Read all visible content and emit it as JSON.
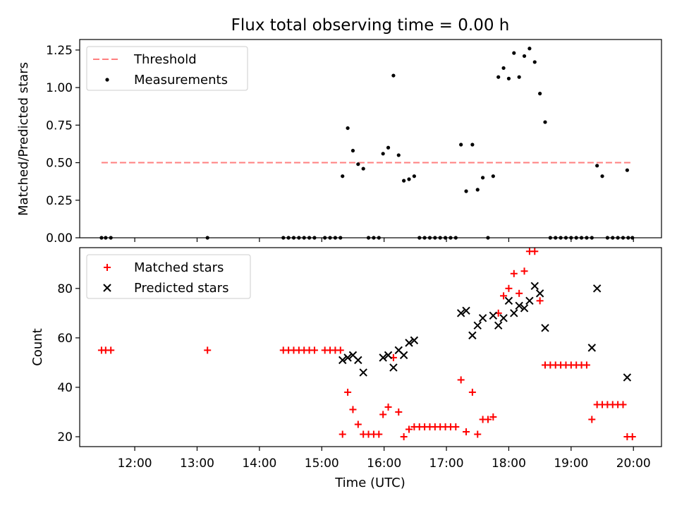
{
  "chart_data": [
    {
      "type": "scatter",
      "title": "Flux total observing time = 0.00 h",
      "xlabel": "",
      "ylabel": "Matched/Predicted stars",
      "xlim": [
        "11:07",
        "20:27"
      ],
      "ylim": [
        0,
        1.32
      ],
      "yticks": [
        0.0,
        0.25,
        0.5,
        0.75,
        1.0,
        1.25
      ],
      "ytick_labels": [
        "0.00",
        "0.25",
        "0.50",
        "0.75",
        "1.00",
        "1.25"
      ],
      "xticks": [
        "12:00",
        "13:00",
        "14:00",
        "15:00",
        "16:00",
        "17:00",
        "18:00",
        "19:00",
        "20:00"
      ],
      "legend": {
        "position": "top-left",
        "entries": [
          "Threshold",
          "Measurements"
        ]
      },
      "threshold": {
        "name": "Threshold",
        "value": 0.5,
        "x_start": "11:28",
        "x_end": "19:59",
        "color": "#ff7f7f"
      },
      "series": [
        {
          "name": "Measurements",
          "color": "#000000",
          "marker": "dot",
          "points": [
            [
              "11:28",
              0
            ],
            [
              "11:32",
              0
            ],
            [
              "11:37",
              0
            ],
            [
              "13:10",
              0
            ],
            [
              "14:23",
              0
            ],
            [
              "14:28",
              0
            ],
            [
              "14:33",
              0
            ],
            [
              "14:38",
              0
            ],
            [
              "14:43",
              0
            ],
            [
              "14:48",
              0
            ],
            [
              "14:53",
              0
            ],
            [
              "15:03",
              0
            ],
            [
              "15:08",
              0
            ],
            [
              "15:13",
              0
            ],
            [
              "15:18",
              0
            ],
            [
              "15:20",
              0.41
            ],
            [
              "15:25",
              0.73
            ],
            [
              "15:30",
              0.58
            ],
            [
              "15:35",
              0.49
            ],
            [
              "15:40",
              0.46
            ],
            [
              "15:45",
              0
            ],
            [
              "15:50",
              0
            ],
            [
              "15:55",
              0
            ],
            [
              "15:59",
              0.56
            ],
            [
              "16:04",
              0.6
            ],
            [
              "16:09",
              1.08
            ],
            [
              "16:14",
              0.55
            ],
            [
              "16:19",
              0.38
            ],
            [
              "16:24",
              0.39
            ],
            [
              "16:29",
              0.41
            ],
            [
              "16:34",
              0
            ],
            [
              "16:39",
              0
            ],
            [
              "16:44",
              0
            ],
            [
              "16:49",
              0
            ],
            [
              "16:54",
              0
            ],
            [
              "16:59",
              0
            ],
            [
              "17:04",
              0
            ],
            [
              "17:09",
              0
            ],
            [
              "17:14",
              0.62
            ],
            [
              "17:19",
              0.31
            ],
            [
              "17:25",
              0.62
            ],
            [
              "17:30",
              0.32
            ],
            [
              "17:35",
              0.4
            ],
            [
              "17:40",
              0
            ],
            [
              "17:45",
              0.41
            ],
            [
              "17:50",
              1.07
            ],
            [
              "17:55",
              1.13
            ],
            [
              "18:00",
              1.06
            ],
            [
              "18:05",
              1.23
            ],
            [
              "18:10",
              1.07
            ],
            [
              "18:15",
              1.21
            ],
            [
              "18:20",
              1.26
            ],
            [
              "18:25",
              1.17
            ],
            [
              "18:30",
              0.96
            ],
            [
              "18:35",
              0.77
            ],
            [
              "18:40",
              0
            ],
            [
              "18:45",
              0
            ],
            [
              "18:50",
              0
            ],
            [
              "18:55",
              0
            ],
            [
              "19:00",
              0
            ],
            [
              "19:05",
              0
            ],
            [
              "19:10",
              0
            ],
            [
              "19:15",
              0
            ],
            [
              "19:20",
              0
            ],
            [
              "19:25",
              0.48
            ],
            [
              "19:30",
              0.41
            ],
            [
              "19:35",
              0
            ],
            [
              "19:40",
              0
            ],
            [
              "19:45",
              0
            ],
            [
              "19:50",
              0
            ],
            [
              "19:55",
              0
            ],
            [
              "19:54",
              0.45
            ],
            [
              "19:59",
              0
            ]
          ]
        }
      ]
    },
    {
      "type": "scatter",
      "title": "",
      "xlabel": "Time (UTC)",
      "ylabel": "Count",
      "xlim": [
        "11:07",
        "20:27"
      ],
      "ylim": [
        16,
        96.5
      ],
      "yticks": [
        20,
        40,
        60,
        80
      ],
      "ytick_labels": [
        "20",
        "40",
        "60",
        "80"
      ],
      "xticks": [
        "12:00",
        "13:00",
        "14:00",
        "15:00",
        "16:00",
        "17:00",
        "18:00",
        "19:00",
        "20:00"
      ],
      "legend": {
        "position": "top-left",
        "entries": [
          "Matched stars",
          "Predicted stars"
        ]
      },
      "series": [
        {
          "name": "Matched stars",
          "color": "#ff0000",
          "marker": "plus",
          "points": [
            [
              "11:28",
              55
            ],
            [
              "11:32",
              55
            ],
            [
              "11:37",
              55
            ],
            [
              "13:10",
              55
            ],
            [
              "14:23",
              55
            ],
            [
              "14:28",
              55
            ],
            [
              "14:33",
              55
            ],
            [
              "14:38",
              55
            ],
            [
              "14:43",
              55
            ],
            [
              "14:48",
              55
            ],
            [
              "14:53",
              55
            ],
            [
              "15:03",
              55
            ],
            [
              "15:08",
              55
            ],
            [
              "15:13",
              55
            ],
            [
              "15:18",
              55
            ],
            [
              "15:20",
              21
            ],
            [
              "15:25",
              38
            ],
            [
              "15:30",
              31
            ],
            [
              "15:35",
              25
            ],
            [
              "15:40",
              21
            ],
            [
              "15:45",
              21
            ],
            [
              "15:50",
              21
            ],
            [
              "15:55",
              21
            ],
            [
              "15:59",
              29
            ],
            [
              "16:04",
              32
            ],
            [
              "16:09",
              52
            ],
            [
              "16:14",
              30
            ],
            [
              "16:19",
              20
            ],
            [
              "16:24",
              23
            ],
            [
              "16:29",
              24
            ],
            [
              "16:34",
              24
            ],
            [
              "16:39",
              24
            ],
            [
              "16:44",
              24
            ],
            [
              "16:49",
              24
            ],
            [
              "16:54",
              24
            ],
            [
              "16:59",
              24
            ],
            [
              "17:04",
              24
            ],
            [
              "17:09",
              24
            ],
            [
              "17:14",
              43
            ],
            [
              "17:19",
              22
            ],
            [
              "17:25",
              38
            ],
            [
              "17:30",
              21
            ],
            [
              "17:35",
              27
            ],
            [
              "17:40",
              27
            ],
            [
              "17:45",
              28
            ],
            [
              "17:50",
              70
            ],
            [
              "17:55",
              77
            ],
            [
              "18:00",
              80
            ],
            [
              "18:05",
              86
            ],
            [
              "18:10",
              78
            ],
            [
              "18:15",
              87
            ],
            [
              "18:20",
              95
            ],
            [
              "18:25",
              95
            ],
            [
              "18:30",
              75
            ],
            [
              "18:35",
              49
            ],
            [
              "18:40",
              49
            ],
            [
              "18:45",
              49
            ],
            [
              "18:50",
              49
            ],
            [
              "18:55",
              49
            ],
            [
              "19:00",
              49
            ],
            [
              "19:05",
              49
            ],
            [
              "19:10",
              49
            ],
            [
              "19:15",
              49
            ],
            [
              "19:20",
              27
            ],
            [
              "19:25",
              33
            ],
            [
              "19:30",
              33
            ],
            [
              "19:35",
              33
            ],
            [
              "19:40",
              33
            ],
            [
              "19:45",
              33
            ],
            [
              "19:50",
              33
            ],
            [
              "19:54",
              20
            ],
            [
              "19:59",
              20
            ]
          ]
        },
        {
          "name": "Predicted stars",
          "color": "#000000",
          "marker": "x",
          "points": [
            [
              "15:20",
              51
            ],
            [
              "15:25",
              52
            ],
            [
              "15:30",
              53
            ],
            [
              "15:35",
              51
            ],
            [
              "15:40",
              46
            ],
            [
              "15:59",
              52
            ],
            [
              "16:04",
              53
            ],
            [
              "16:09",
              48
            ],
            [
              "16:14",
              55
            ],
            [
              "16:19",
              53
            ],
            [
              "16:24",
              58
            ],
            [
              "16:29",
              59
            ],
            [
              "17:14",
              70
            ],
            [
              "17:19",
              71
            ],
            [
              "17:25",
              61
            ],
            [
              "17:30",
              65
            ],
            [
              "17:35",
              68
            ],
            [
              "17:45",
              69
            ],
            [
              "17:50",
              65
            ],
            [
              "17:55",
              68
            ],
            [
              "18:00",
              75
            ],
            [
              "18:05",
              70
            ],
            [
              "18:10",
              73
            ],
            [
              "18:15",
              72
            ],
            [
              "18:20",
              75
            ],
            [
              "18:25",
              81
            ],
            [
              "18:30",
              78
            ],
            [
              "18:35",
              64
            ],
            [
              "19:20",
              56
            ],
            [
              "19:25",
              80
            ],
            [
              "19:54",
              44
            ]
          ]
        }
      ]
    }
  ]
}
